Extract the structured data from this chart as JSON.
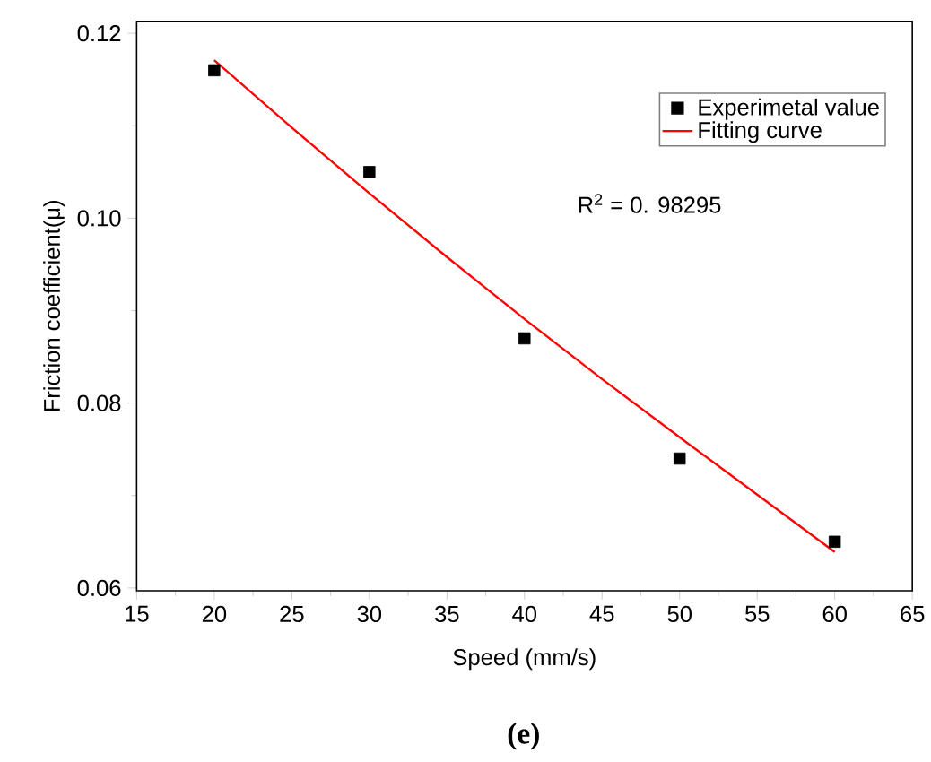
{
  "chart_data": {
    "type": "scatter",
    "xlabel": "Speed (mm/s)",
    "ylabel": "Friction coefficient(μ)",
    "xlim": [
      15,
      65
    ],
    "xticks": [
      15,
      20,
      25,
      30,
      35,
      40,
      45,
      50,
      55,
      60,
      65
    ],
    "ylim": [
      0.0597,
      0.1213
    ],
    "yticks": [
      0.06,
      0.08,
      {
        "value": 0.1,
        "label": "0.10"
      },
      0.12
    ],
    "legend": "top right",
    "marker": "square",
    "grid": false,
    "series": [
      {
        "name": "Experimetal value",
        "color": "#000000",
        "x": [
          20,
          30,
          40,
          50,
          60
        ],
        "values": [
          0.116,
          0.105,
          0.087,
          0.074,
          0.065
        ]
      },
      {
        "name": "Fitting curve",
        "type": "line",
        "marker": "none",
        "color": "#ff0000",
        "x": [
          20,
          25,
          30,
          35,
          40,
          45,
          50,
          55,
          60
        ],
        "values": [
          0.1171,
          0.1098,
          0.1027,
          0.0958,
          0.0891,
          0.0826,
          0.0763,
          0.0701,
          0.0639
        ]
      }
    ],
    "annotations": [
      "R$^{2}$ = 0. 98295",
      "(e)"
    ]
  }
}
